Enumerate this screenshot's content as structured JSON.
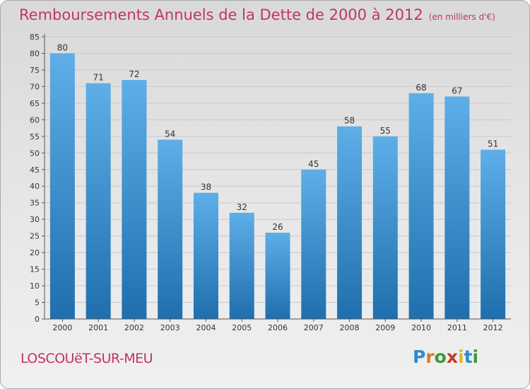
{
  "title": "Remboursements Annuels de la Dette de 2000 à 2012",
  "unit": "(en milliers d'€)",
  "place_name": "LOSCOUëT-SUR-MEU",
  "logo": {
    "text": "Proxiti",
    "letters": [
      "P",
      "r",
      "o",
      "x",
      "i",
      "t",
      "i"
    ],
    "colors": [
      "#2f8bd0",
      "#e07a1f",
      "#3c9a3a",
      "#c23a2e",
      "#e0b91f",
      "#2f8bd0",
      "#3c9a3a"
    ]
  },
  "colors": {
    "bar_top": "#5eaee8",
    "bar_bottom": "#1f6fae",
    "title": "#c1365c",
    "grid": "#c8c8c8",
    "axis": "#555555"
  },
  "chart_data": {
    "type": "bar",
    "categories": [
      "2000",
      "2001",
      "2002",
      "2003",
      "2004",
      "2005",
      "2006",
      "2007",
      "2008",
      "2009",
      "2010",
      "2011",
      "2012"
    ],
    "values": [
      80,
      71,
      72,
      54,
      38,
      32,
      26,
      45,
      58,
      55,
      68,
      67,
      51
    ],
    "ylim": [
      0,
      85
    ],
    "ytick_step": 5,
    "grid": true,
    "data_labels": true,
    "xlabel": "",
    "ylabel": ""
  }
}
